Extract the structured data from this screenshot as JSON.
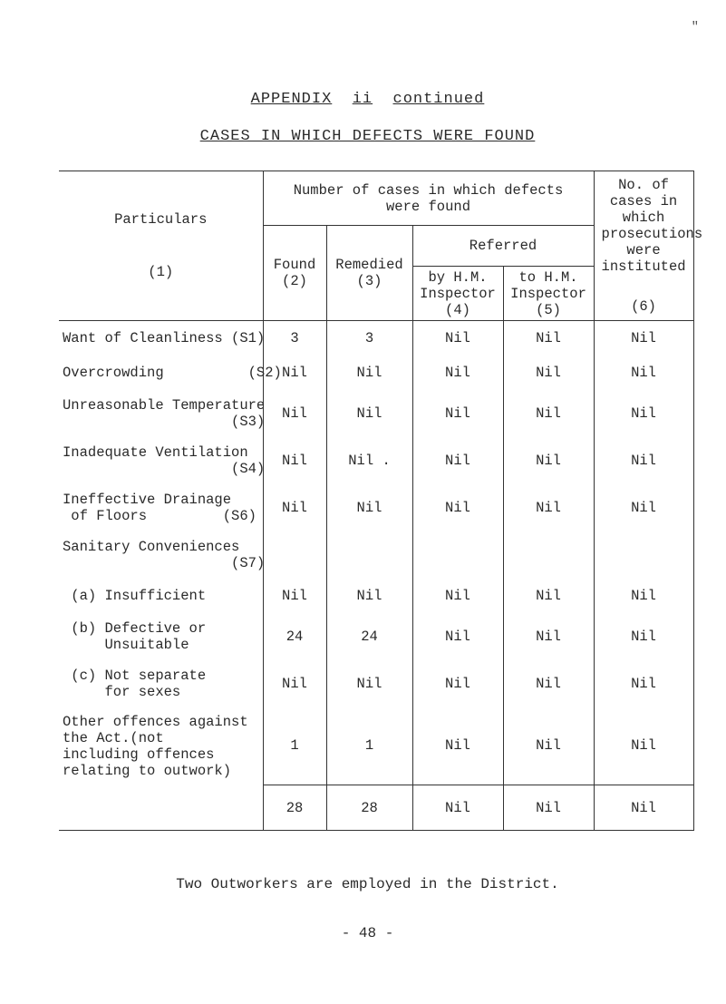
{
  "toprightMark": "\"",
  "title1_pre": "APPENDIX",
  "title1_mid": "ii",
  "title1_post": "continued",
  "title2": "CASES IN WHICH DEFECTS WERE FOUND",
  "header": {
    "particulars_label": "Particulars",
    "particulars_num": "(1)",
    "group_number": "Number of cases in which defects were found",
    "group_no_cases": "No. of cases in which prosecutions were instituted",
    "referred": "Referred",
    "found": "Found",
    "found_n": "(2)",
    "remedied": "Remedied",
    "remedied_n": "(3)",
    "by_hm": "by H.M. Inspector",
    "by_hm_n": "(4)",
    "to_hm": "to H.M. Inspector",
    "to_hm_n": "(5)",
    "pros_n": "(6)"
  },
  "rows": [
    {
      "label": "Want of Cleanliness (S1)",
      "c": [
        "3",
        "3",
        "Nil",
        "Nil",
        "Nil"
      ]
    },
    {
      "label": "Overcrowding          (S2)",
      "c": [
        "Nil",
        "Nil",
        "Nil",
        "Nil",
        "Nil"
      ]
    },
    {
      "label": "Unreasonable Temperature\n                    (S3)",
      "c": [
        "Nil",
        "Nil",
        "Nil",
        "Nil",
        "Nil"
      ]
    },
    {
      "label": "Inadequate Ventilation\n                    (S4)",
      "c": [
        "Nil",
        "Nil  .",
        "Nil",
        "Nil",
        "Nil"
      ]
    },
    {
      "label": "Ineffective Drainage\n of Floors         (S6)",
      "c": [
        "Nil",
        "Nil",
        "Nil",
        "Nil",
        "Nil"
      ]
    },
    {
      "label": "Sanitary Conveniences\n                    (S7)",
      "c": [
        "",
        "",
        "",
        "",
        ""
      ]
    },
    {
      "label": " (a) Insufficient",
      "c": [
        "Nil",
        "Nil",
        "Nil",
        "Nil",
        "Nil"
      ]
    },
    {
      "label": " (b) Defective or\n     Unsuitable",
      "c": [
        "24",
        "24",
        "Nil",
        "Nil",
        "Nil"
      ]
    },
    {
      "label": " (c) Not separate\n     for sexes",
      "c": [
        "Nil",
        "Nil",
        "Nil",
        "Nil",
        "Nil"
      ]
    },
    {
      "label": "Other offences against\nthe Act.(not\nincluding offences\nrelating to outwork)",
      "c": [
        "1",
        "1",
        "Nil",
        "Nil",
        "Nil"
      ]
    }
  ],
  "totals": {
    "c": [
      "28",
      "28",
      "Nil",
      "Nil",
      "Nil"
    ]
  },
  "footerNote": "Two Outworkers are employed in the District.",
  "pageNum": "- 48 -"
}
